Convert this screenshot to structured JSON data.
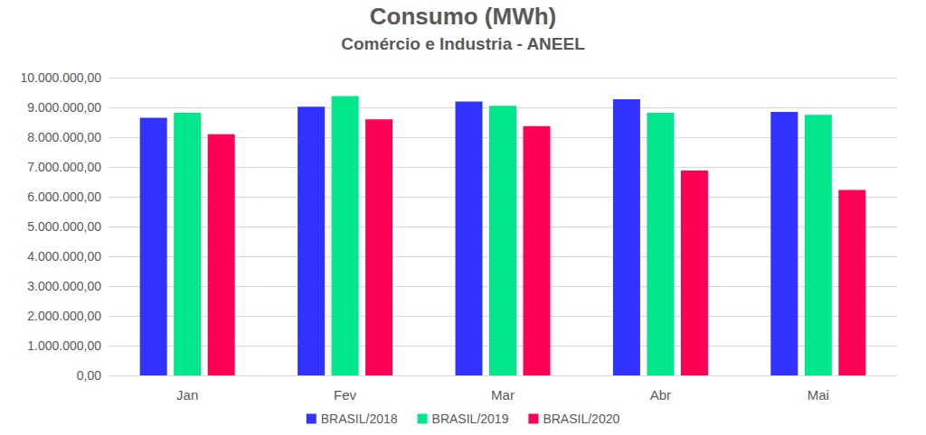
{
  "chart_data": {
    "type": "bar",
    "title": "Consumo (MWh)",
    "subtitle": "Comércio e Industria - ANEEL",
    "categories": [
      "Jan",
      "Fev",
      "Mar",
      "Abr",
      "Mai"
    ],
    "series": [
      {
        "name": "BRASIL/2018",
        "color": "#3333ff",
        "values": [
          8650000,
          9020000,
          9200000,
          9270000,
          8850000
        ]
      },
      {
        "name": "BRASIL/2019",
        "color": "#00e68a",
        "values": [
          8820000,
          9380000,
          9050000,
          8820000,
          8750000
        ]
      },
      {
        "name": "BRASIL/2020",
        "color": "#ff0055",
        "values": [
          8100000,
          8600000,
          8370000,
          6880000,
          6230000
        ]
      }
    ],
    "ylim": [
      0,
      10000000
    ],
    "yticks": [
      {
        "value": 0,
        "label": "0,00"
      },
      {
        "value": 1000000,
        "label": "1.000.000,00"
      },
      {
        "value": 2000000,
        "label": "2.000.000,00"
      },
      {
        "value": 3000000,
        "label": "3.000.000,00"
      },
      {
        "value": 4000000,
        "label": "4.000.000,00"
      },
      {
        "value": 5000000,
        "label": "5.000.000,00"
      },
      {
        "value": 6000000,
        "label": "6.000.000,00"
      },
      {
        "value": 7000000,
        "label": "7.000.000,00"
      },
      {
        "value": 8000000,
        "label": "8.000.000,00"
      },
      {
        "value": 9000000,
        "label": "9.000.000,00"
      },
      {
        "value": 10000000,
        "label": "10.000.000,00"
      }
    ],
    "grid": true,
    "legend": "bottom"
  }
}
